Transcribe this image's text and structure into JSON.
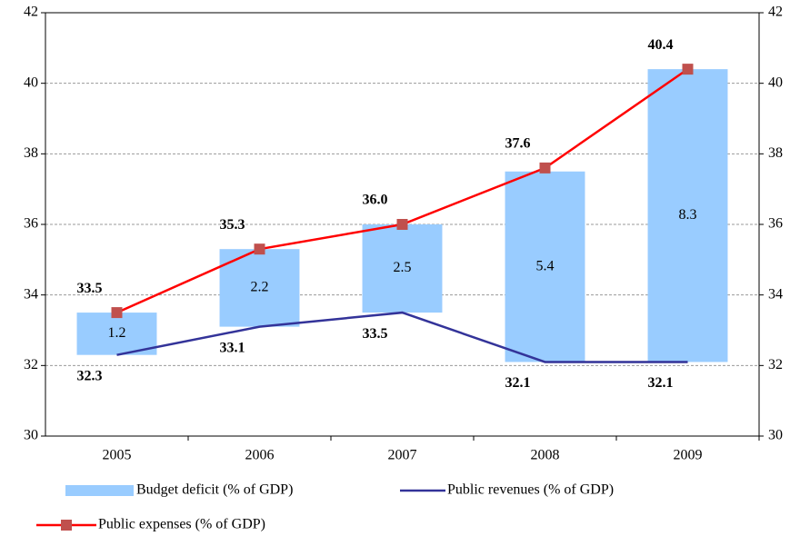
{
  "chart_data": {
    "type": "bar",
    "categories": [
      "2005",
      "2006",
      "2007",
      "2008",
      "2009"
    ],
    "series": [
      {
        "name": "Budget deficit (% of GDP)",
        "type": "bar",
        "color": "#99ccff",
        "values": [
          1.2,
          2.2,
          2.5,
          5.4,
          8.3
        ]
      },
      {
        "name": "Public revenues (% of GDP)",
        "type": "line",
        "color": "#333399",
        "values": [
          32.3,
          33.1,
          33.5,
          32.1,
          32.1
        ]
      },
      {
        "name": "Public expenses (% of GDP)",
        "type": "line",
        "color": "#ff0000",
        "marker_color": "#c0504d",
        "values": [
          33.5,
          35.3,
          36.0,
          37.6,
          40.4
        ],
        "value_labels": [
          "33.5",
          "35.3",
          "36.0",
          "37.6",
          "40.4"
        ]
      }
    ],
    "ylim": [
      30,
      42
    ],
    "yticks": [
      30,
      32,
      34,
      36,
      38,
      40,
      42
    ],
    "y2lim": [
      30,
      42
    ],
    "y2ticks": [
      30,
      32,
      34,
      36,
      38,
      40,
      42
    ],
    "grid": true
  }
}
